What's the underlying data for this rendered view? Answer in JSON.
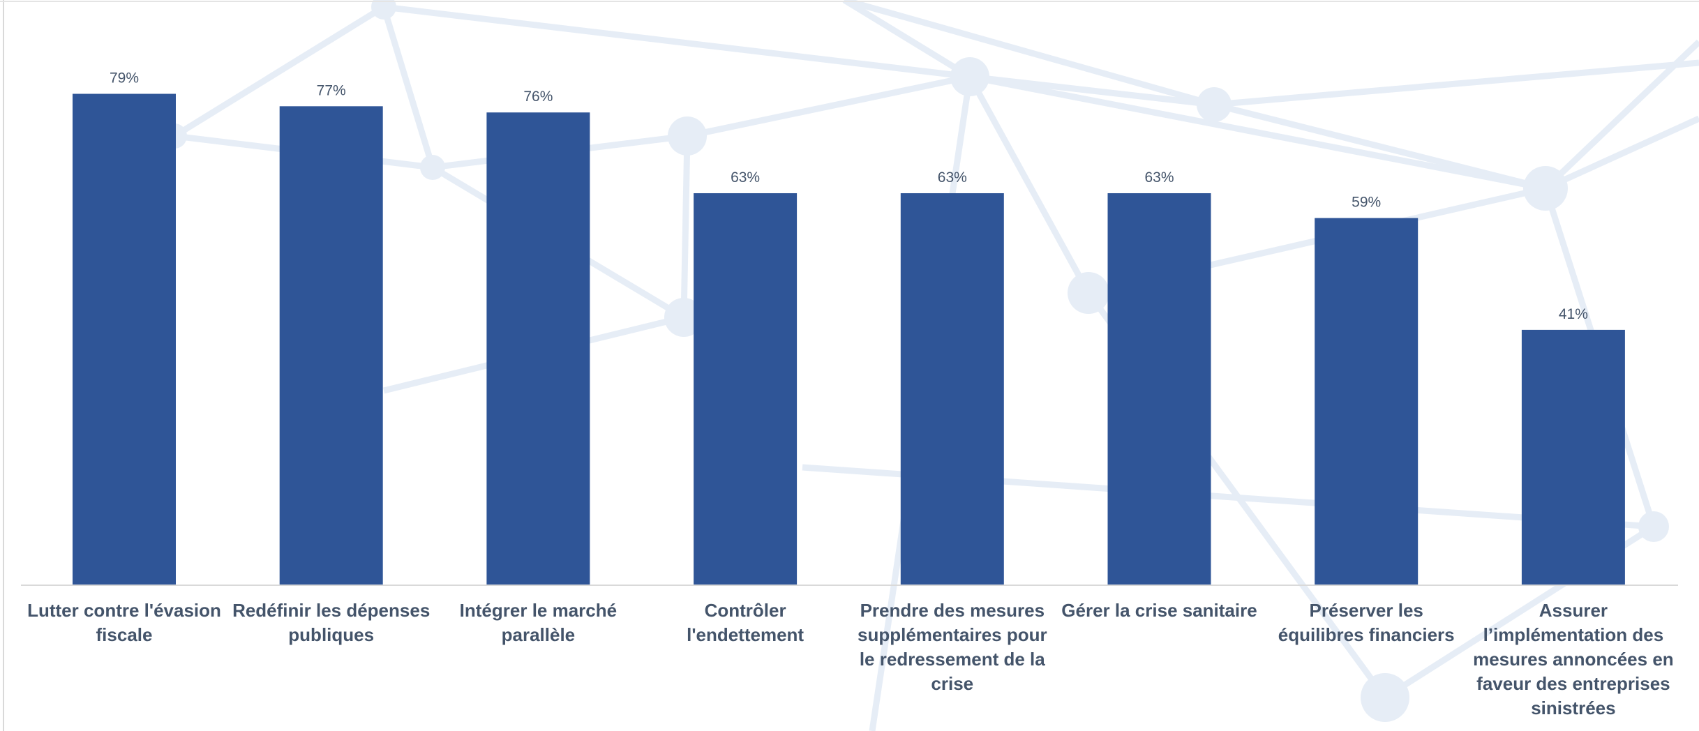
{
  "chart_data": {
    "type": "bar",
    "categories": [
      "Lutter contre l'évasion fiscale",
      "Redéfinir les dépenses publiques",
      "Intégrer le marché parallèle",
      "Contrôler l'endettement",
      "Prendre des mesures supplémentaires pour le redressement de la crise",
      "Gérer la crise sanitaire",
      "Préserver les équilibres financiers",
      "Assurer l’implémentation des mesures annoncées en faveur des entreprises sinistrées"
    ],
    "values": [
      79,
      77,
      76,
      63,
      63,
      63,
      59,
      41
    ],
    "value_labels": [
      "79%",
      "77%",
      "76%",
      "63%",
      "63%",
      "63%",
      "59%",
      "41%"
    ],
    "color": "#2f5597"
  }
}
